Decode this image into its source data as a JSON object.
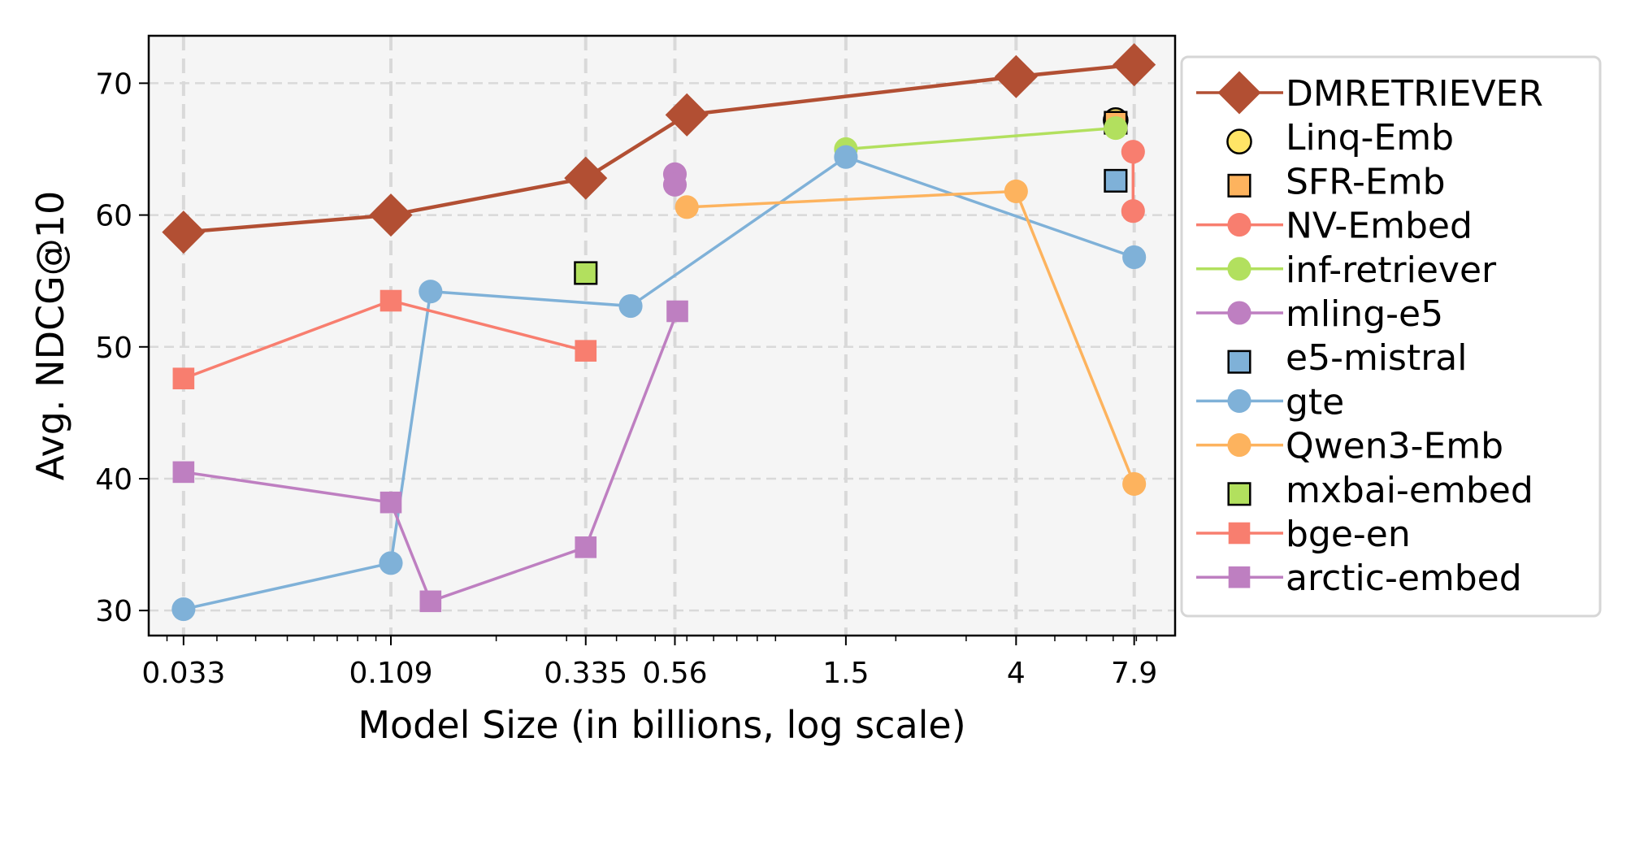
{
  "chart_data": {
    "type": "line",
    "title": "",
    "xlabel": "Model Size (in billions, log scale)",
    "ylabel": "Avg. NDCG@10",
    "xscale": "log",
    "xlim": [
      0.027,
      10.0
    ],
    "ylim": [
      28.1,
      73.6
    ],
    "xticks": [
      0.033,
      0.109,
      0.335,
      0.56,
      1.5,
      4,
      7.9
    ],
    "xtick_labels": [
      "0.033",
      "0.109",
      "0.335",
      "0.56",
      "1.5",
      "4",
      "7.9"
    ],
    "yticks": [
      30,
      40,
      50,
      60,
      70
    ],
    "ytick_labels": [
      "30",
      "40",
      "50",
      "60",
      "70"
    ],
    "grid": true,
    "legend_position": "outside-right",
    "series": [
      {
        "name": "DMRETRIEVER",
        "color": "#b24f33",
        "marker": "diamond",
        "line": true,
        "edge": false,
        "points": [
          [
            0.033,
            58.7
          ],
          [
            0.109,
            60.0
          ],
          [
            0.335,
            62.8
          ],
          [
            0.6,
            67.6
          ],
          [
            4,
            70.5
          ],
          [
            7.9,
            71.4
          ]
        ]
      },
      {
        "name": "Linq-Emb",
        "color": "#ffe566",
        "marker": "circle",
        "line": false,
        "edge": true,
        "points": [
          [
            7.1,
            67.2
          ]
        ]
      },
      {
        "name": "SFR-Emb",
        "color": "#fdb35e",
        "marker": "square",
        "line": false,
        "edge": true,
        "points": [
          [
            7.1,
            67.0
          ]
        ]
      },
      {
        "name": "NV-Embed",
        "color": "#f87e6f",
        "marker": "circle",
        "line": true,
        "edge": false,
        "points": [
          [
            7.85,
            64.8
          ],
          [
            7.85,
            60.3
          ]
        ]
      },
      {
        "name": "inf-retriever",
        "color": "#b2e05e",
        "marker": "circle",
        "line": true,
        "edge": false,
        "points": [
          [
            1.5,
            65.0
          ],
          [
            7.1,
            66.6
          ]
        ]
      },
      {
        "name": "mling-e5",
        "color": "#be7fc1",
        "marker": "circle",
        "line": true,
        "edge": false,
        "points": [
          [
            0.56,
            63.1
          ],
          [
            0.56,
            62.3
          ]
        ]
      },
      {
        "name": "e5-mistral",
        "color": "#7fb1d8",
        "marker": "square",
        "line": false,
        "edge": true,
        "points": [
          [
            7.1,
            62.6
          ]
        ]
      },
      {
        "name": "gte",
        "color": "#7fb1d8",
        "marker": "circle",
        "line": true,
        "edge": false,
        "points": [
          [
            0.033,
            30.1
          ],
          [
            0.109,
            33.6
          ],
          [
            0.137,
            54.2
          ],
          [
            0.434,
            53.1
          ],
          [
            1.5,
            64.4
          ],
          [
            7.9,
            56.8
          ]
        ]
      },
      {
        "name": "Qwen3-Emb",
        "color": "#fdb35e",
        "marker": "circle",
        "line": true,
        "edge": false,
        "points": [
          [
            0.6,
            60.6
          ],
          [
            4,
            61.8
          ],
          [
            7.9,
            39.6
          ]
        ]
      },
      {
        "name": "mxbai-embed",
        "color": "#b2e05e",
        "marker": "square",
        "line": false,
        "edge": true,
        "points": [
          [
            0.335,
            55.6
          ]
        ]
      },
      {
        "name": "bge-en",
        "color": "#f87e6f",
        "marker": "square",
        "line": true,
        "edge": false,
        "points": [
          [
            0.033,
            47.6
          ],
          [
            0.109,
            53.5
          ],
          [
            0.335,
            49.7
          ]
        ]
      },
      {
        "name": "arctic-embed",
        "color": "#be7fc1",
        "marker": "square",
        "line": true,
        "edge": false,
        "points": [
          [
            0.033,
            40.5
          ],
          [
            0.109,
            38.2
          ],
          [
            0.137,
            30.7
          ],
          [
            0.335,
            34.8
          ],
          [
            0.568,
            52.7
          ]
        ]
      }
    ]
  }
}
